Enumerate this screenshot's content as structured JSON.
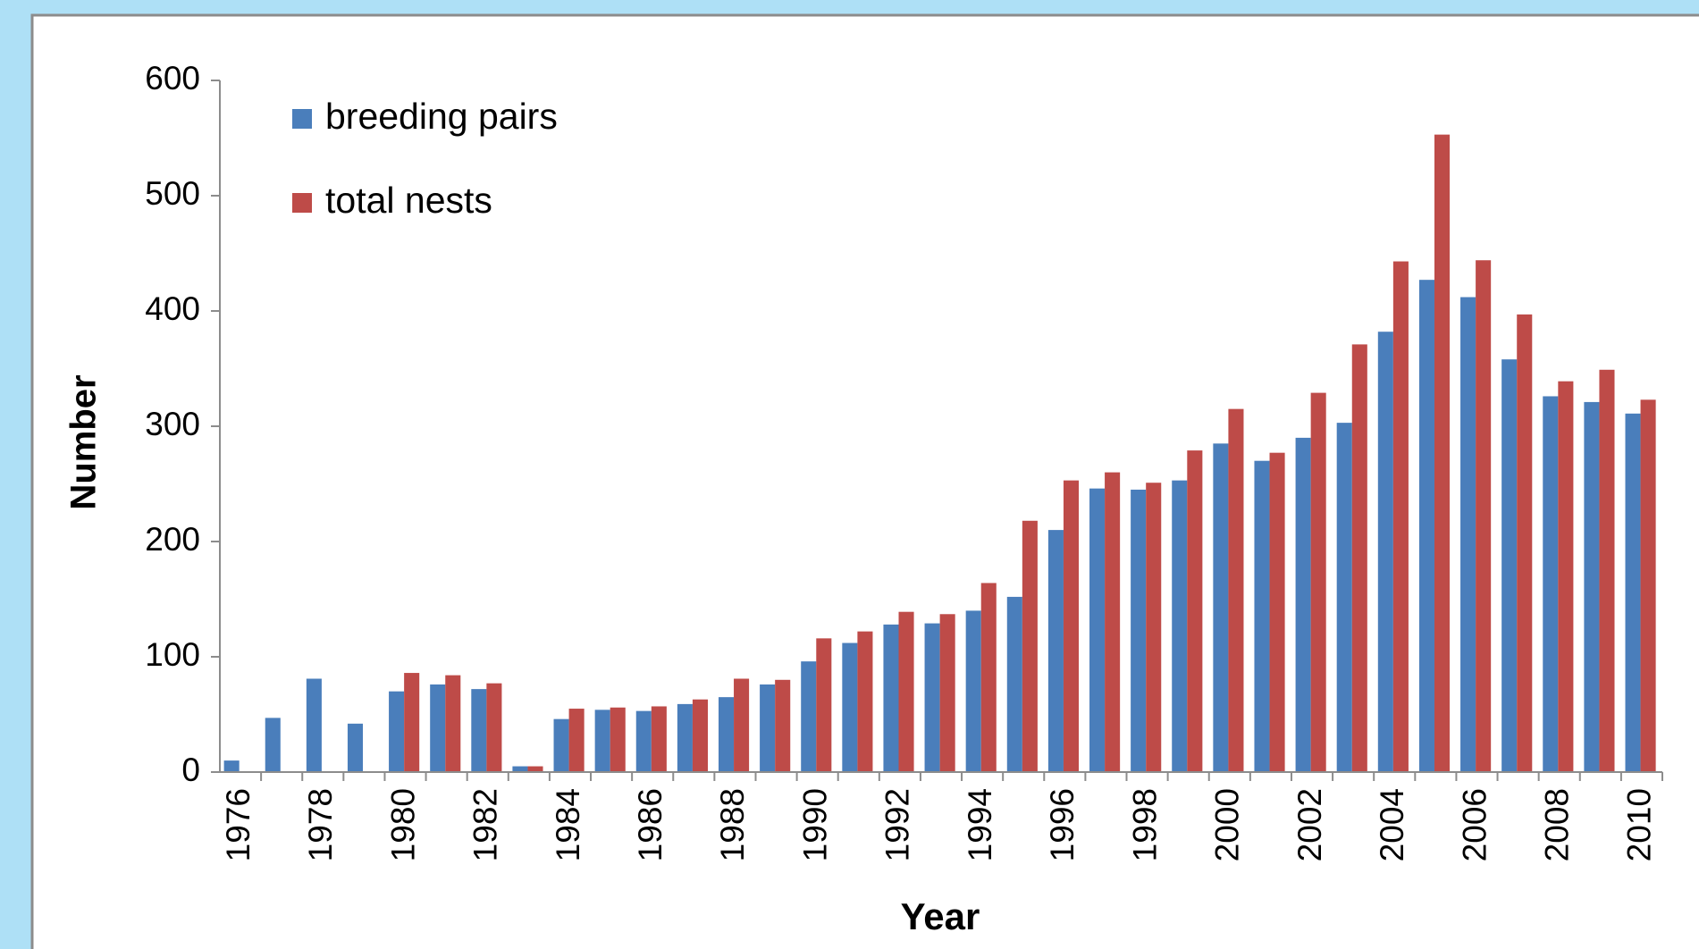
{
  "chart_data": {
    "type": "bar",
    "xlabel": "Year",
    "ylabel": "Number",
    "categories": [
      "1976",
      null,
      "1978",
      null,
      "1980",
      null,
      "1982",
      null,
      "1984",
      null,
      "1986",
      null,
      "1988",
      null,
      "1990",
      null,
      "1992",
      null,
      "1994",
      null,
      "1996",
      null,
      "1998",
      null,
      "2000",
      null,
      "2002",
      null,
      "2004",
      null,
      "2006",
      null,
      "2008",
      null,
      "2010"
    ],
    "series": [
      {
        "name": "breeding pairs",
        "color": "#4a7ebb",
        "values": [
          10,
          47,
          81,
          42,
          70,
          76,
          72,
          5,
          46,
          54,
          53,
          59,
          65,
          76,
          96,
          112,
          128,
          129,
          140,
          152,
          210,
          246,
          245,
          253,
          285,
          270,
          290,
          303,
          382,
          427,
          412,
          358,
          326,
          321,
          311
        ]
      },
      {
        "name": "total nests",
        "color": "#be4b48",
        "values": [
          null,
          null,
          null,
          null,
          86,
          84,
          77,
          5,
          55,
          56,
          57,
          63,
          81,
          80,
          116,
          122,
          139,
          137,
          164,
          218,
          253,
          260,
          251,
          279,
          315,
          277,
          329,
          371,
          443,
          553,
          444,
          397,
          339,
          349,
          323
        ]
      }
    ],
    "ylim": [
      0,
      600
    ],
    "yticks": [
      0,
      100,
      200,
      300,
      400,
      500,
      600
    ],
    "legend": "upper left"
  }
}
